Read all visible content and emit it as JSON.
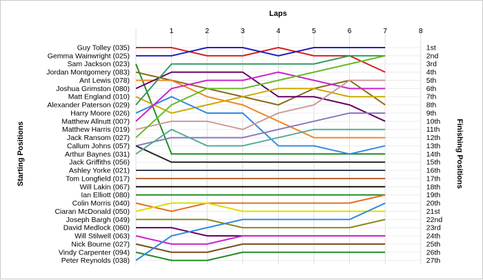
{
  "chart_data": {
    "type": "line",
    "title": "Laps",
    "ylabel_left": "Starting Positions",
    "ylabel_right": "Finishing Positions",
    "x": [
      "1",
      "2",
      "3",
      "4",
      "5",
      "6",
      "7",
      "8"
    ],
    "finish_labels": [
      "1st",
      "2nd",
      "3rd",
      "4th",
      "5th",
      "6th",
      "7th",
      "8th",
      "9th",
      "10th",
      "11th",
      "12th",
      "13th",
      "14th",
      "15th",
      "16th",
      "17th",
      "18th",
      "19th",
      "20th",
      "21st",
      "22nd",
      "23rd",
      "24th",
      "25th",
      "26th",
      "27th"
    ],
    "grid": true,
    "series": [
      {
        "name": "Guy Tolley (035)",
        "color": "#d42020",
        "positions": [
          1,
          1,
          2,
          2,
          1,
          2,
          2,
          4
        ]
      },
      {
        "name": "Gemma Wainwright (025)",
        "color": "#2020c0",
        "positions": [
          2,
          2,
          1,
          1,
          2,
          1,
          1,
          1
        ]
      },
      {
        "name": "Sam Jackson (023)",
        "color": "#228b22",
        "positions": [
          3,
          14,
          14,
          14,
          14,
          14,
          14,
          14
        ]
      },
      {
        "name": "Jordan Montgomery (083)",
        "color": "#8b6914",
        "positions": [
          4,
          5,
          6,
          7,
          8,
          6,
          5,
          8
        ]
      },
      {
        "name": "Ant Lewis (078)",
        "color": "#ee8822",
        "positions": [
          5,
          5,
          7,
          8,
          10,
          12,
          12,
          12
        ]
      },
      {
        "name": "Joshua Grimston (080)",
        "color": "#660066",
        "positions": [
          6,
          4,
          4,
          4,
          7,
          7,
          8,
          10
        ]
      },
      {
        "name": "Matt England (010)",
        "color": "#ccaa00",
        "positions": [
          7,
          9,
          8,
          7,
          6,
          6,
          7,
          7
        ]
      },
      {
        "name": "Alexander Paterson (029)",
        "color": "#339966",
        "positions": [
          8,
          3,
          3,
          3,
          3,
          3,
          2,
          2
        ]
      },
      {
        "name": "Harry Moore (026)",
        "color": "#3388dd",
        "positions": [
          9,
          7,
          9,
          9,
          13,
          13,
          14,
          13
        ]
      },
      {
        "name": "Matthew Allnutt (007)",
        "color": "#cc22cc",
        "positions": [
          10,
          6,
          5,
          5,
          4,
          5,
          6,
          6
        ]
      },
      {
        "name": "Matthew Harris (019)",
        "color": "#cc9999",
        "positions": [
          11,
          10,
          10,
          11,
          9,
          8,
          5,
          5
        ]
      },
      {
        "name": "Jack Ransom (027)",
        "color": "#66bb22",
        "positions": [
          12,
          8,
          6,
          6,
          5,
          4,
          3,
          2
        ]
      },
      {
        "name": "Callum Johns (057)",
        "color": "#8877bb",
        "positions": [
          13,
          12,
          12,
          12,
          11,
          10,
          9,
          9
        ]
      },
      {
        "name": "Arthur Baynes (031)",
        "color": "#2a2a2a",
        "positions": [
          13,
          15,
          15,
          15,
          15,
          15,
          15,
          15
        ]
      },
      {
        "name": "Jack Griffiths (056)",
        "color": "#55aa99",
        "positions": [
          14,
          11,
          13,
          13,
          12,
          11,
          11,
          11
        ]
      },
      {
        "name": "Ashley Yorke (021)",
        "color": "#334455",
        "positions": [
          16,
          16,
          16,
          16,
          16,
          16,
          16,
          16
        ]
      },
      {
        "name": "Tom Longfield (017)",
        "color": "#b06030",
        "positions": [
          17,
          17,
          17,
          17,
          17,
          17,
          17,
          17
        ]
      },
      {
        "name": "Will Lakin (067)",
        "color": "#111111",
        "positions": [
          18,
          18,
          18,
          18,
          18,
          18,
          18,
          18
        ]
      },
      {
        "name": "Ian Elliott (080)",
        "color": "#1e8c1e",
        "positions": [
          19,
          19,
          19,
          19,
          19,
          19,
          19,
          19
        ]
      },
      {
        "name": "Colin Morris (040)",
        "color": "#e07020",
        "positions": [
          20,
          21,
          20,
          20,
          20,
          20,
          20,
          19
        ]
      },
      {
        "name": "Ciaran McDonald (050)",
        "color": "#dddd00",
        "positions": [
          21,
          20,
          20,
          21,
          21,
          21,
          21,
          21
        ]
      },
      {
        "name": "Joseph Bargh (049)",
        "color": "#888822",
        "positions": [
          22,
          22,
          22,
          23,
          23,
          23,
          23,
          22
        ]
      },
      {
        "name": "David Medlock (060)",
        "color": "#660066",
        "positions": [
          23,
          23,
          24,
          24,
          24,
          24,
          24,
          24
        ]
      },
      {
        "name": "Will Stilwell (063)",
        "color": "#cc22cc",
        "positions": [
          24,
          25,
          25,
          24,
          24,
          24,
          24,
          24
        ]
      },
      {
        "name": "Nick Bourne (027)",
        "color": "#7a4a1a",
        "positions": [
          25,
          26,
          26,
          25,
          25,
          25,
          25,
          25
        ]
      },
      {
        "name": "Vindy Carpenter (094)",
        "color": "#228b22",
        "positions": [
          26,
          27,
          27,
          26,
          26,
          26,
          26,
          26
        ]
      },
      {
        "name": "Peter Reynolds (038)",
        "color": "#3388dd",
        "positions": [
          27,
          24,
          23,
          22,
          22,
          22,
          22,
          20
        ]
      }
    ]
  }
}
